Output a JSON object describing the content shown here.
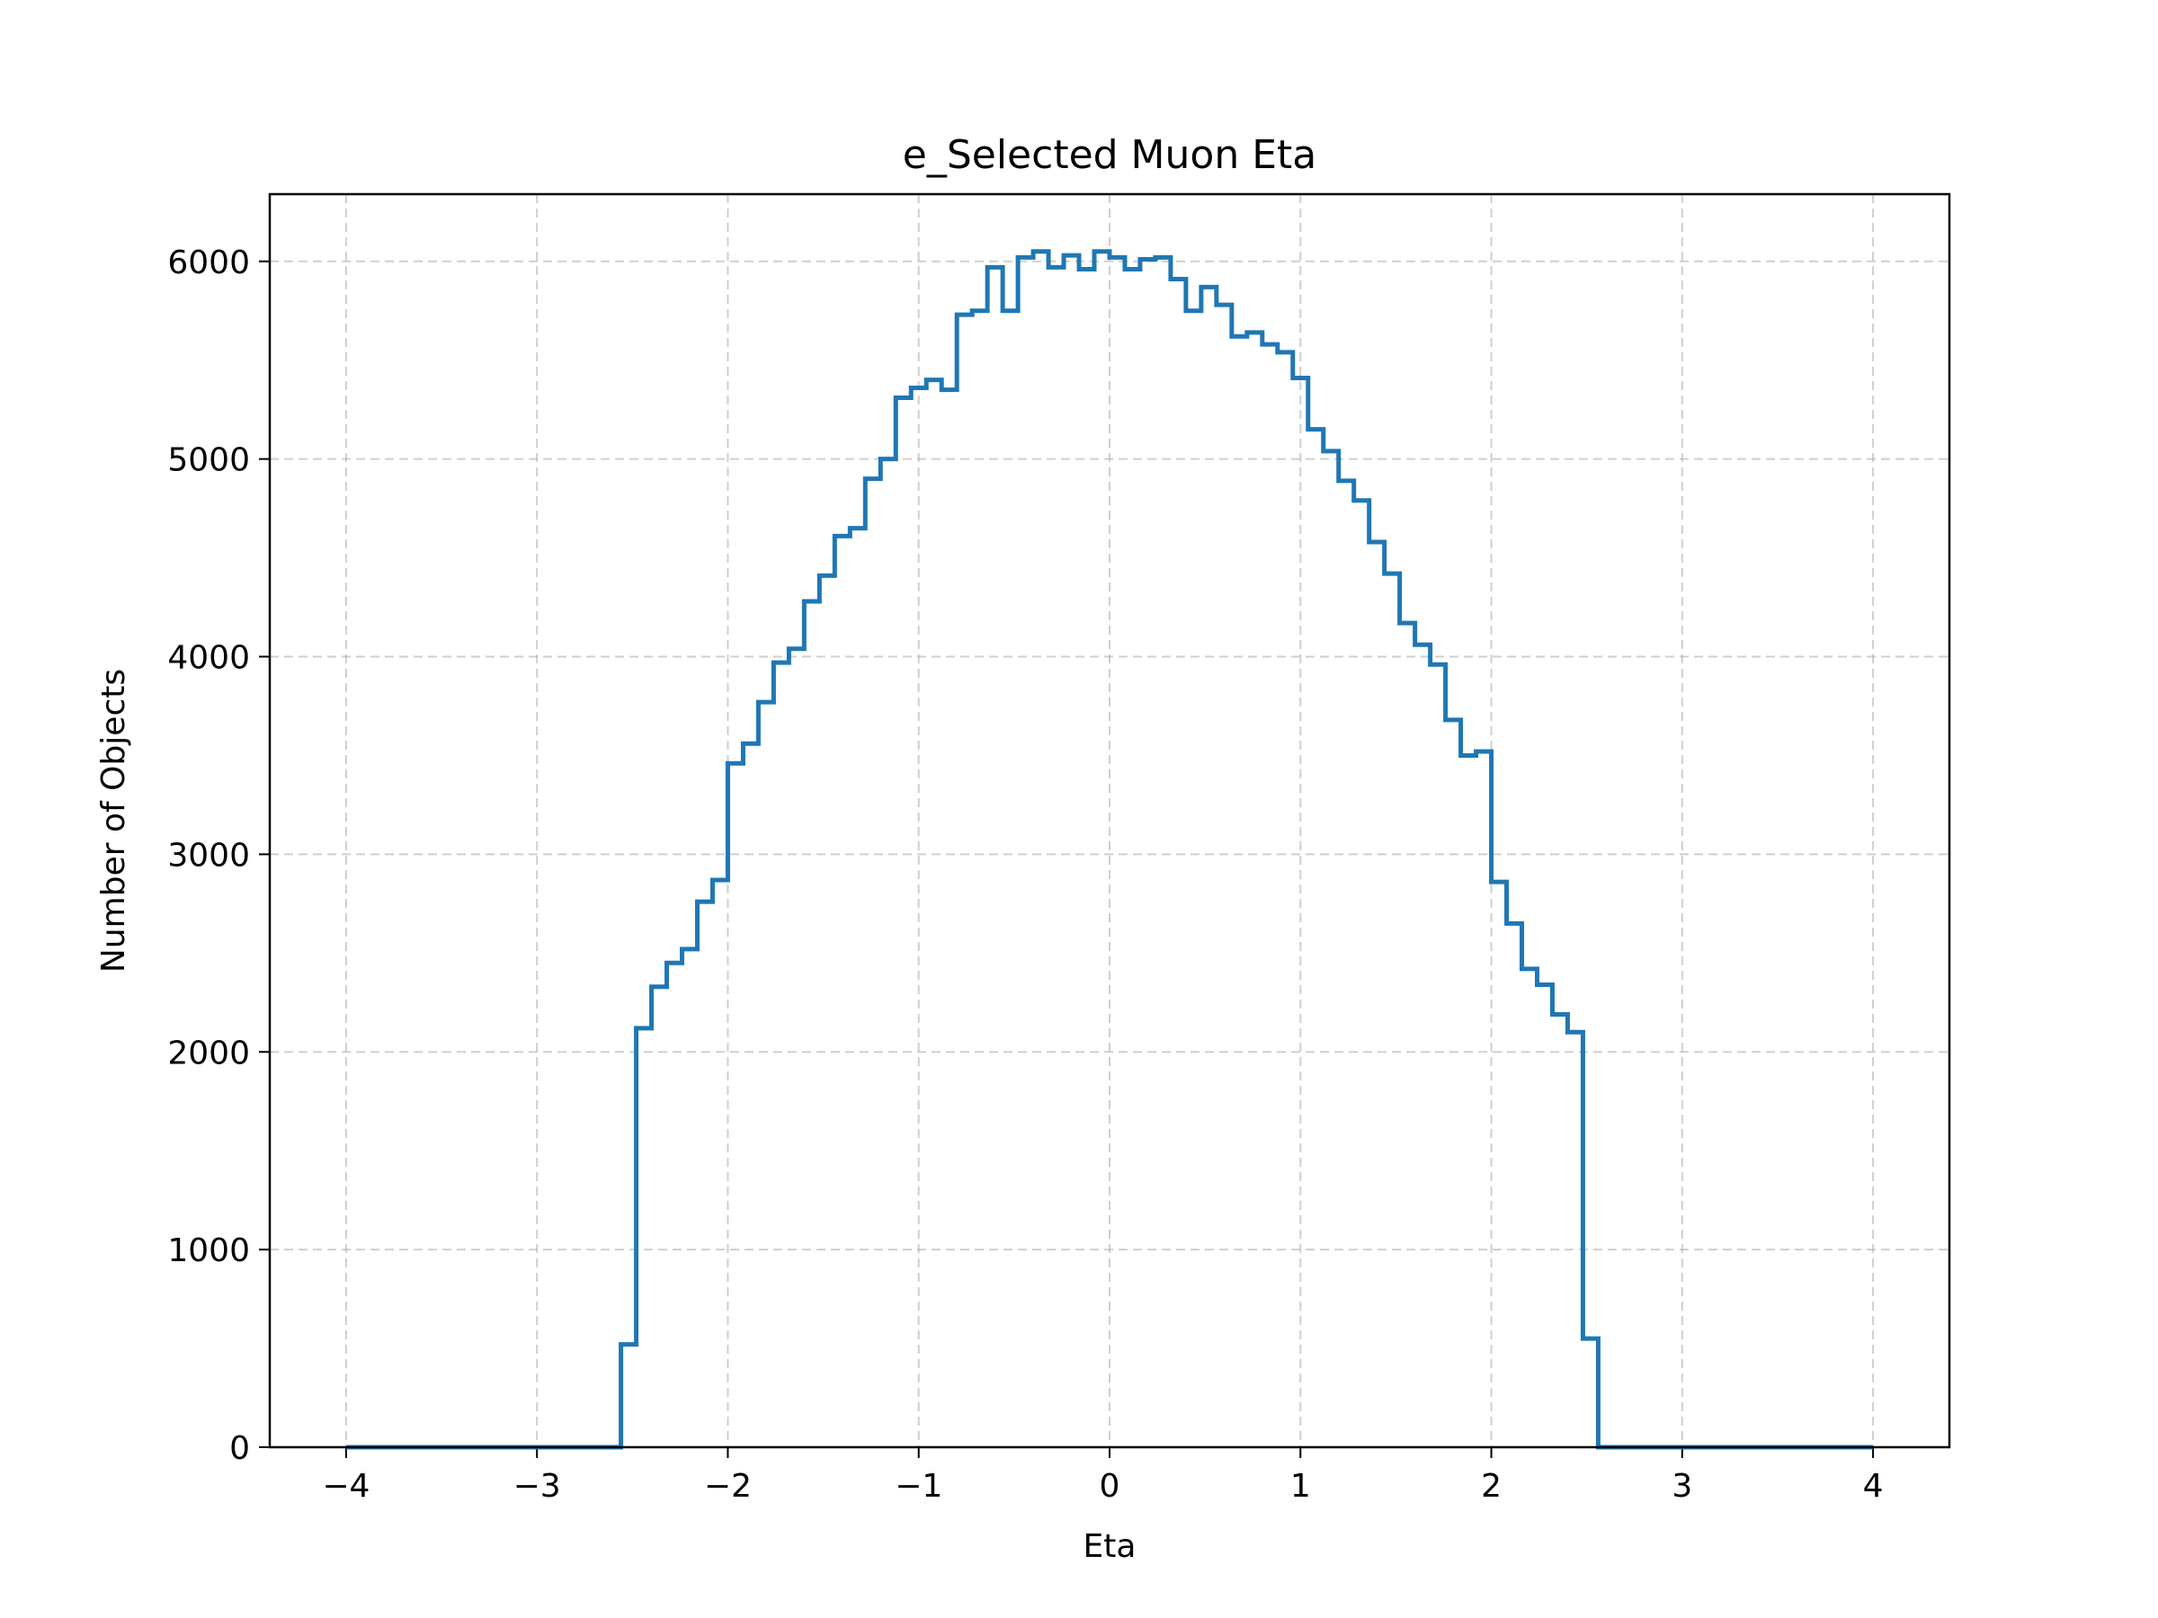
{
  "chart_data": {
    "type": "histogram-step",
    "title": "e_Selected Muon Eta",
    "xlabel": "Eta",
    "ylabel": "Number of Objects",
    "xlim": [
      -4.4,
      4.4
    ],
    "ylim": [
      0,
      6340
    ],
    "grid": true,
    "color": "#1f77b4",
    "xticks": [
      -4,
      -3,
      -2,
      -1,
      0,
      1,
      2,
      3,
      4
    ],
    "xtick_labels": [
      "−4",
      "−3",
      "−2",
      "−1",
      "0",
      "1",
      "2",
      "3",
      "4"
    ],
    "yticks": [
      0,
      1000,
      2000,
      3000,
      4000,
      5000,
      6000
    ],
    "ytick_labels": [
      "0",
      "1000",
      "2000",
      "3000",
      "4000",
      "5000",
      "6000"
    ],
    "bin_edges_start": -4.0,
    "bin_width": 0.08,
    "counts": [
      0,
      0,
      0,
      0,
      0,
      0,
      0,
      0,
      0,
      0,
      0,
      0,
      0,
      0,
      0,
      0,
      0,
      0,
      520,
      2120,
      2330,
      2450,
      2520,
      2760,
      2870,
      3460,
      3560,
      3770,
      3970,
      4040,
      4280,
      4410,
      4610,
      4650,
      4900,
      5000,
      5310,
      5360,
      5400,
      5350,
      5730,
      5750,
      5970,
      5750,
      6020,
      6050,
      5970,
      6030,
      5960,
      6050,
      6020,
      5960,
      6010,
      6020,
      5910,
      5750,
      5870,
      5780,
      5620,
      5640,
      5580,
      5540,
      5410,
      5150,
      5040,
      4890,
      4790,
      4580,
      4420,
      4170,
      4060,
      3960,
      3680,
      3500,
      3520,
      2860,
      2650,
      2420,
      2340,
      2190,
      2100,
      550,
      0,
      0,
      0,
      0,
      0,
      0,
      0,
      0,
      0,
      0,
      0,
      0,
      0,
      0,
      0,
      0,
      0,
      0
    ]
  }
}
